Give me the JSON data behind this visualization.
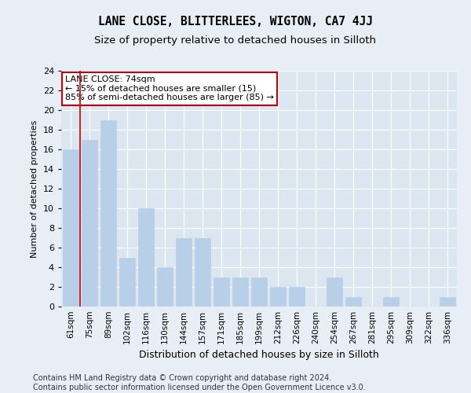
{
  "title": "LANE CLOSE, BLITTERLEES, WIGTON, CA7 4JJ",
  "subtitle": "Size of property relative to detached houses in Silloth",
  "xlabel": "Distribution of detached houses by size in Silloth",
  "ylabel": "Number of detached properties",
  "categories": [
    "61sqm",
    "75sqm",
    "89sqm",
    "102sqm",
    "116sqm",
    "130sqm",
    "144sqm",
    "157sqm",
    "171sqm",
    "185sqm",
    "199sqm",
    "212sqm",
    "226sqm",
    "240sqm",
    "254sqm",
    "267sqm",
    "281sqm",
    "295sqm",
    "309sqm",
    "322sqm",
    "336sqm"
  ],
  "values": [
    16,
    17,
    19,
    5,
    10,
    4,
    7,
    7,
    3,
    3,
    3,
    2,
    2,
    0,
    3,
    1,
    0,
    1,
    0,
    0,
    1
  ],
  "bar_color": "#b8cfe8",
  "bar_edge_color": "#b8cfe8",
  "vline_x": 0.5,
  "vline_color": "#cc0000",
  "annotation_text": "LANE CLOSE: 74sqm\n← 15% of detached houses are smaller (15)\n85% of semi-detached houses are larger (85) →",
  "annotation_box_color": "#ffffff",
  "annotation_box_edge_color": "#cc0000",
  "ylim": [
    0,
    24
  ],
  "yticks": [
    0,
    2,
    4,
    6,
    8,
    10,
    12,
    14,
    16,
    18,
    20,
    22,
    24
  ],
  "background_color": "#e8eef5",
  "plot_bg_color": "#dce6f0",
  "footer": "Contains HM Land Registry data © Crown copyright and database right 2024.\nContains public sector information licensed under the Open Government Licence v3.0.",
  "footer_fontsize": 7.0,
  "title_fontsize": 10.5,
  "subtitle_fontsize": 9.5,
  "xlabel_fontsize": 9,
  "ylabel_fontsize": 8,
  "annotation_fontsize": 8
}
